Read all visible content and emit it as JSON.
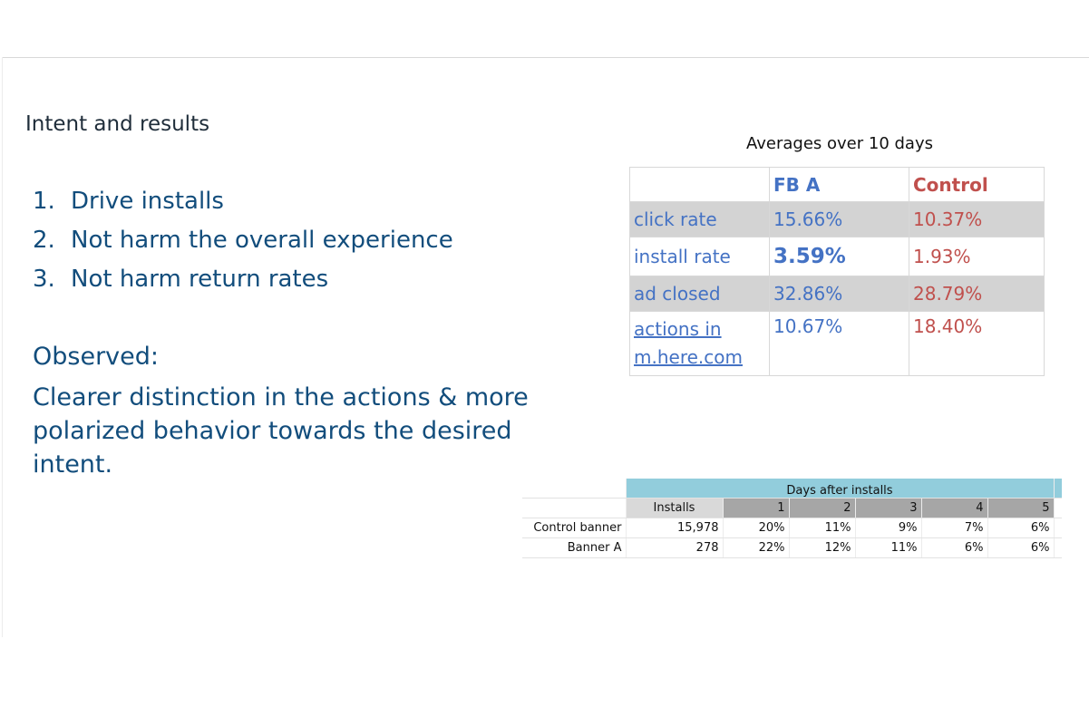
{
  "section_title": "Intent and results",
  "intents": [
    {
      "num": "1.",
      "text": "Drive installs"
    },
    {
      "num": "2.",
      "text": "Not harm the overall experience"
    },
    {
      "num": "3.",
      "text": "Not harm return rates"
    }
  ],
  "observed": {
    "title": "Observed:",
    "text": "Clearer distinction in the actions & more polarized behavior towards the desired intent."
  },
  "averages": {
    "title": "Averages over 10 days",
    "columns": [
      "FB A",
      "Control"
    ],
    "rows": [
      {
        "label": "click rate",
        "fb_a": "15.66%",
        "control": "10.37%"
      },
      {
        "label": "install rate",
        "fb_a": "3.59%",
        "control": "1.93%"
      },
      {
        "label": "ad closed",
        "fb_a": "32.86%",
        "control": "28.79%"
      },
      {
        "label": "actions in m.here.com",
        "fb_a": "10.67%",
        "control": "18.40%"
      }
    ]
  },
  "retention": {
    "days_header": "Days after installs",
    "installs_header": "Installs",
    "days": [
      "1",
      "2",
      "3",
      "4",
      "5"
    ],
    "rows": [
      {
        "label": "Control banner",
        "installs": "15,978",
        "values": [
          "20%",
          "11%",
          "9%",
          "7%",
          "6%"
        ]
      },
      {
        "label": "Banner A",
        "installs": "278",
        "values": [
          "22%",
          "12%",
          "11%",
          "6%",
          "6%"
        ]
      }
    ]
  },
  "colors": {
    "heading_blue": "#124d7c",
    "fb_a_blue": "#4472c4",
    "control_red": "#c0504d",
    "row_shade": "#d3d3d3",
    "days_header_bg": "#92cddc"
  }
}
